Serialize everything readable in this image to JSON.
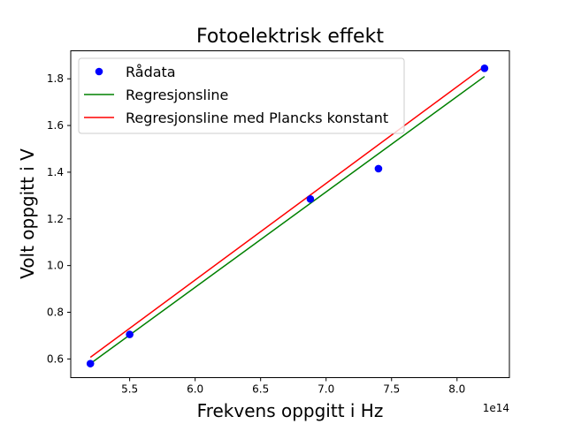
{
  "chart_data": {
    "type": "scatter",
    "title": "Fotoelektrisk effekt",
    "xlabel": "Frekvens oppgitt i Hz",
    "ylabel": "Volt oppgitt i V",
    "x_offset_label": "1e14",
    "xlim": [
      5.05,
      8.4
    ],
    "ylim": [
      0.52,
      1.92
    ],
    "x_ticks": [
      5.5,
      6.0,
      6.5,
      7.0,
      7.5,
      8.0
    ],
    "x_tick_labels": [
      "5.5",
      "6.0",
      "6.5",
      "7.0",
      "7.5",
      "8.0"
    ],
    "y_ticks": [
      0.6,
      0.8,
      1.0,
      1.2,
      1.4,
      1.6,
      1.8
    ],
    "y_tick_labels": [
      "0.6",
      "0.8",
      "1.0",
      "1.2",
      "1.4",
      "1.6",
      "1.8"
    ],
    "grid": false,
    "legend_position": "upper-left",
    "series": [
      {
        "name": "Rådata",
        "kind": "scatter",
        "color": "#0000ff",
        "x": [
          5.2,
          5.5,
          6.88,
          7.4,
          8.21
        ],
        "y": [
          0.58,
          0.705,
          1.285,
          1.415,
          1.845
        ]
      },
      {
        "name": "Regresjonsline",
        "kind": "line",
        "color": "#008000",
        "x": [
          5.2,
          8.21
        ],
        "y": [
          0.58,
          1.81
        ]
      },
      {
        "name": "Regresjonsline med Plancks konstant",
        "kind": "line",
        "color": "#ff0000",
        "x": [
          5.2,
          8.21
        ],
        "y": [
          0.607,
          1.853
        ]
      }
    ]
  }
}
